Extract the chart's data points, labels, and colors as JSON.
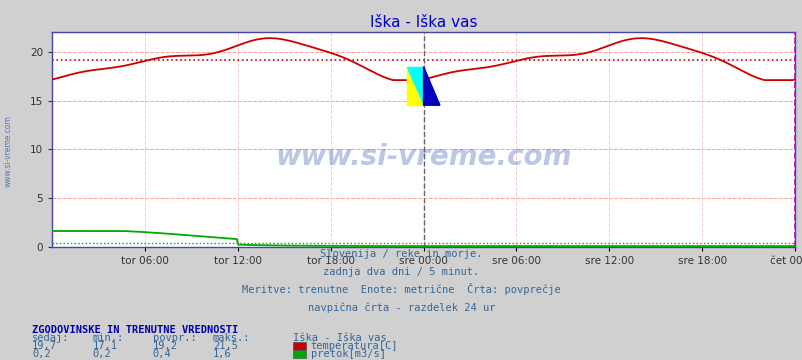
{
  "title": "Iška - Iška vas",
  "title_color": "#0000cc",
  "bg_color": "#d0d0d0",
  "plot_bg_color": "#ffffff",
  "grid_color_h": "#ff9999",
  "grid_color_v": "#ffcccc",
  "xlabel_ticks": [
    "tor 06:00",
    "tor 12:00",
    "tor 18:00",
    "sre 00:00",
    "sre 06:00",
    "sre 12:00",
    "sre 18:00",
    "čet 00:00"
  ],
  "tick_positions": [
    0.125,
    0.25,
    0.375,
    0.5,
    0.625,
    0.75,
    0.875,
    1.0
  ],
  "ylabel_ticks": [
    0,
    5,
    10,
    15,
    20
  ],
  "ylim": [
    0,
    22
  ],
  "xlim": [
    0,
    1
  ],
  "temp_color": "#cc0000",
  "flow_color": "#00aa00",
  "avg_temp": 19.2,
  "avg_flow": 0.4,
  "vline_24h_color": "#666666",
  "vline_end_color": "#cc00cc",
  "watermark_text": "www.si-vreme.com",
  "watermark_color": "#2244aa",
  "watermark_alpha": 0.3,
  "left_label": "www.si-vreme.com",
  "left_label_color": "#3355aa",
  "subtitle_lines": [
    "Slovenija / reke in morje.",
    "zadnja dva dni / 5 minut.",
    "Meritve: trenutne  Enote: metrične  Črta: povprečje",
    "navpična črta - razdelek 24 ur"
  ],
  "subtitle_color": "#336699",
  "table_header": "ZGODOVINSKE IN TRENUTNE VREDNOSTI",
  "table_header_color": "#0000aa",
  "table_cols": [
    "sedaj:",
    "min.:",
    "povpr.:",
    "maks.:",
    "Iška - Iška vas"
  ],
  "table_rows": [
    [
      "19,7",
      "17,1",
      "19,2",
      "21,5",
      "temperatura[C]"
    ],
    [
      "0,2",
      "0,2",
      "0,4",
      "1,6",
      "pretok[m3/s]"
    ]
  ],
  "table_row_colors": [
    "#cc0000",
    "#00aa00"
  ],
  "table_color": "#336699",
  "n_points": 576
}
